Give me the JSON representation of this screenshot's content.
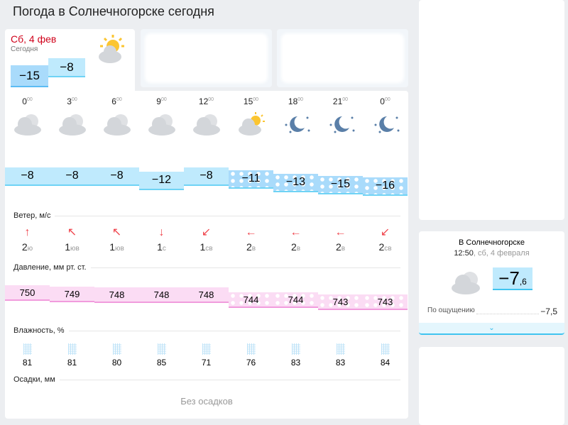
{
  "title": "Погода в Солнечногорске сегодня",
  "today": {
    "date": "Сб, 4 фев",
    "label": "Сегодня",
    "min": "−15",
    "max": "−8",
    "icon": "partly-cloudy-icon"
  },
  "hours": [
    {
      "h": "0",
      "m": "00",
      "icon": "cloudy",
      "t": "−8",
      "p": "750",
      "wv": "2",
      "wd": "ю",
      "wa": "↑",
      "hum": "81"
    },
    {
      "h": "3",
      "m": "00",
      "icon": "cloudy",
      "t": "−8",
      "p": "749",
      "wv": "1",
      "wd": "юв",
      "wa": "↖",
      "hum": "81"
    },
    {
      "h": "6",
      "m": "00",
      "icon": "cloudy",
      "t": "−8",
      "p": "748",
      "wv": "1",
      "wd": "юв",
      "wa": "↖",
      "hum": "80"
    },
    {
      "h": "9",
      "m": "00",
      "icon": "cloudy",
      "t": "−12",
      "p": "748",
      "wv": "1",
      "wd": "с",
      "wa": "↓",
      "hum": "85"
    },
    {
      "h": "12",
      "m": "00",
      "icon": "cloudy",
      "t": "−8",
      "p": "748",
      "wv": "1",
      "wd": "св",
      "wa": "↙",
      "hum": "71"
    },
    {
      "h": "15",
      "m": "00",
      "icon": "partly-cloudy",
      "t": "−11",
      "p": "744",
      "wv": "2",
      "wd": "в",
      "wa": "←",
      "hum": "76"
    },
    {
      "h": "18",
      "m": "00",
      "icon": "clear-night",
      "t": "−13",
      "p": "744",
      "wv": "2",
      "wd": "в",
      "wa": "←",
      "hum": "83"
    },
    {
      "h": "21",
      "m": "00",
      "icon": "clear-night",
      "t": "−15",
      "p": "743",
      "wv": "2",
      "wd": "в",
      "wa": "←",
      "hum": "83"
    },
    {
      "h": "0",
      "m": "00",
      "icon": "clear-night",
      "t": "−16",
      "p": "743",
      "wv": "2",
      "wd": "св",
      "wa": "↙",
      "hum": "84"
    }
  ],
  "sections": {
    "wind": "Ветер, м/с",
    "pressure": "Давление, мм рт. ст.",
    "humidity": "Влажность, %",
    "precip": "Осадки, мм",
    "no_precip": "Без осадков"
  },
  "now": {
    "city": "В Солнечногорске",
    "time": "12:50",
    "date": ", сб, 4 февраля",
    "temp_int": "−7",
    "temp_dec": ",6",
    "feels_label": "По ощущению",
    "feels": "−7,5",
    "icon": "cloudy-icon"
  },
  "colors": {
    "temp": "#bfeafd",
    "pressure": "#fbdcf4",
    "wind": "#f0464e",
    "date": "#d0021b"
  }
}
